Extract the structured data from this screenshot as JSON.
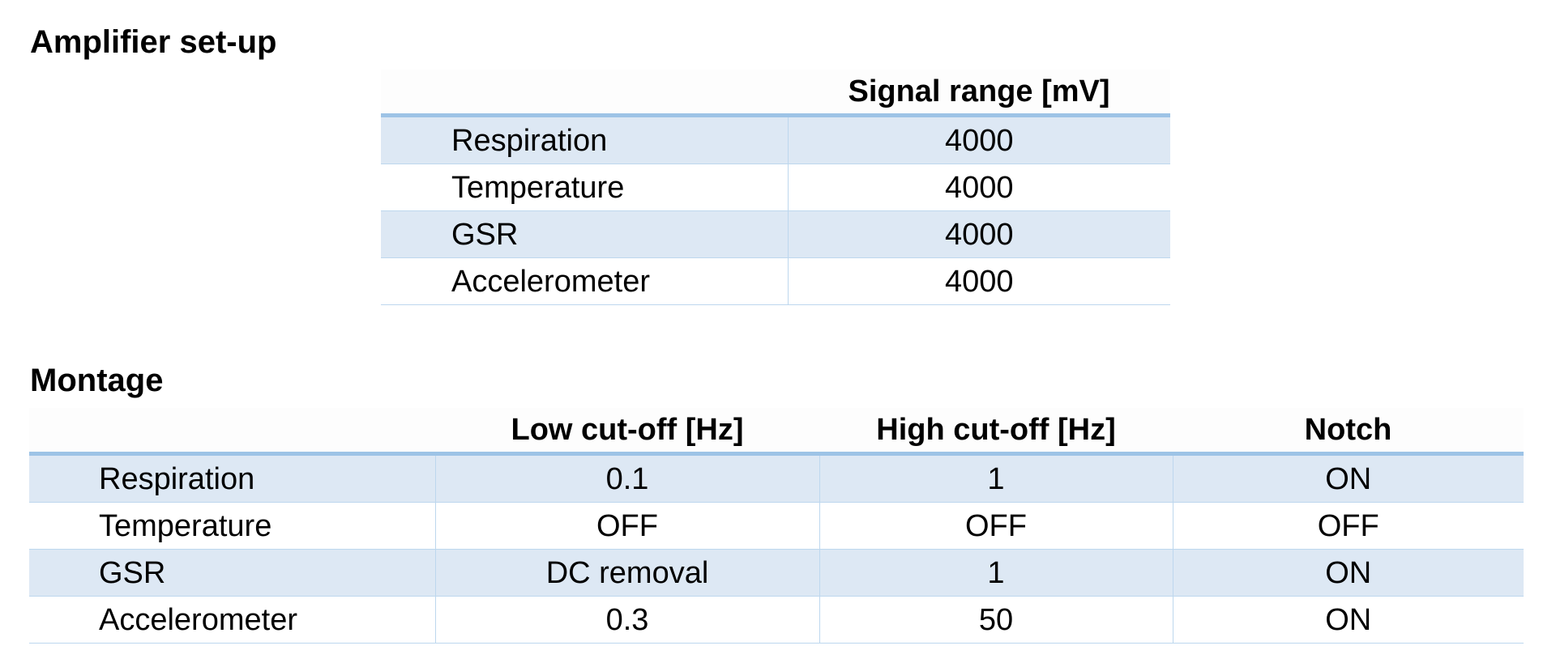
{
  "amplifier": {
    "heading": "Amplifier set-up",
    "columns": [
      "",
      "Signal range [mV]"
    ],
    "rows": [
      {
        "label": "Respiration",
        "signal_range": "4000"
      },
      {
        "label": "Temperature",
        "signal_range": "4000"
      },
      {
        "label": "GSR",
        "signal_range": "4000"
      },
      {
        "label": "Accelerometer",
        "signal_range": "4000"
      }
    ]
  },
  "montage": {
    "heading": "Montage",
    "columns": [
      "",
      "Low cut-off [Hz]",
      "High cut-off [Hz]",
      "Notch"
    ],
    "rows": [
      {
        "label": "Respiration",
        "low_cutoff": "0.1",
        "high_cutoff": "1",
        "notch": "ON"
      },
      {
        "label": "Temperature",
        "low_cutoff": "OFF",
        "high_cutoff": "OFF",
        "notch": "OFF"
      },
      {
        "label": "GSR",
        "low_cutoff": "DC removal",
        "high_cutoff": "1",
        "notch": "ON"
      },
      {
        "label": "Accelerometer",
        "low_cutoff": "0.3",
        "high_cutoff": "50",
        "notch": "ON"
      }
    ]
  },
  "colors": {
    "header_rule": "#9dc3e6",
    "band_fill": "#dde8f4",
    "grid_line": "#bdd7ee"
  }
}
